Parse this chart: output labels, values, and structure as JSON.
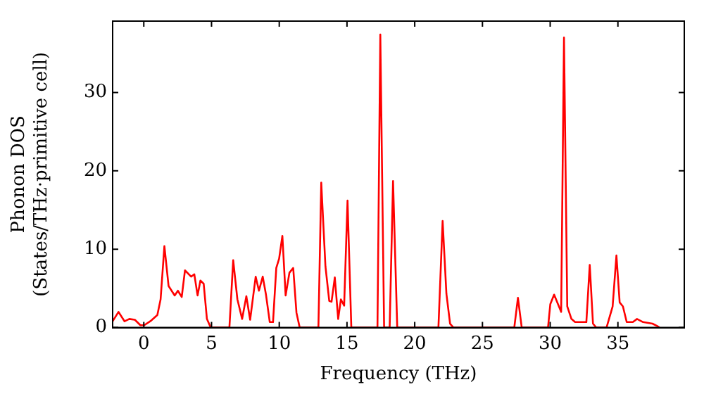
{
  "chart_data": {
    "type": "line",
    "xlabel": "Frequency (THz)",
    "ylabel": "Phonon DOS\n(States/THz·primitive cell)",
    "xlim": [
      -2.3,
      39.9
    ],
    "ylim": [
      0,
      39.1
    ],
    "xticks": [
      0,
      5,
      10,
      15,
      20,
      25,
      30,
      35
    ],
    "yticks": [
      0,
      10,
      20,
      30
    ],
    "grid": false,
    "legend": false,
    "marker": "none",
    "line_style": "solid",
    "series": [
      {
        "color": "#ff0000",
        "x": [
          -2.3,
          -1.87,
          -1.42,
          -1.07,
          -0.66,
          -0.25,
          0.03,
          0.55,
          1.0,
          1.24,
          1.52,
          1.83,
          2.28,
          2.52,
          2.8,
          3.04,
          3.49,
          3.73,
          3.97,
          4.18,
          4.42,
          4.66,
          4.94,
          6.32,
          6.6,
          6.91,
          7.26,
          7.57,
          7.85,
          8.26,
          8.5,
          8.78,
          9.02,
          9.3,
          9.54,
          9.78,
          9.99,
          10.23,
          10.47,
          10.75,
          11.03,
          11.27,
          11.51,
          12.89,
          13.1,
          13.41,
          13.69,
          13.86,
          14.1,
          14.35,
          14.55,
          14.79,
          15.04,
          15.32,
          17.25,
          17.46,
          17.74,
          18.15,
          18.4,
          18.71,
          21.75,
          22.06,
          22.34,
          22.61,
          22.86,
          27.35,
          27.62,
          27.9,
          29.84,
          30.01,
          30.29,
          30.81,
          31.02,
          31.26,
          31.57,
          31.84,
          32.67,
          32.92,
          33.16,
          33.4,
          34.16,
          34.61,
          34.89,
          35.13,
          35.37,
          35.65,
          36.1,
          36.41,
          36.86,
          37.55,
          37.9,
          38.07
        ],
        "values": [
          0.8,
          2.0,
          0.8,
          1.1,
          1.0,
          0.3,
          0.3,
          0.9,
          1.6,
          3.6,
          10.4,
          5.3,
          4.1,
          4.7,
          3.9,
          7.3,
          6.5,
          6.8,
          4.1,
          6.0,
          5.6,
          1.1,
          0,
          0,
          8.6,
          3.6,
          1.1,
          4.0,
          1.0,
          6.5,
          4.7,
          6.5,
          4.2,
          0.7,
          0.7,
          7.6,
          8.8,
          11.7,
          4.1,
          7.0,
          7.6,
          1.9,
          0,
          0,
          18.5,
          7.8,
          3.4,
          3.3,
          6.4,
          1.1,
          3.6,
          2.8,
          16.2,
          0,
          0,
          37.4,
          0,
          0,
          18.7,
          0,
          0,
          13.6,
          4.3,
          0.5,
          0,
          0,
          3.8,
          0,
          0,
          3.0,
          4.2,
          2.0,
          37.0,
          2.7,
          1.1,
          0.7,
          0.7,
          8.0,
          0.5,
          0,
          0,
          2.7,
          9.2,
          3.2,
          2.7,
          0.7,
          0.7,
          1.1,
          0.7,
          0.5,
          0.2,
          0
        ]
      }
    ]
  }
}
